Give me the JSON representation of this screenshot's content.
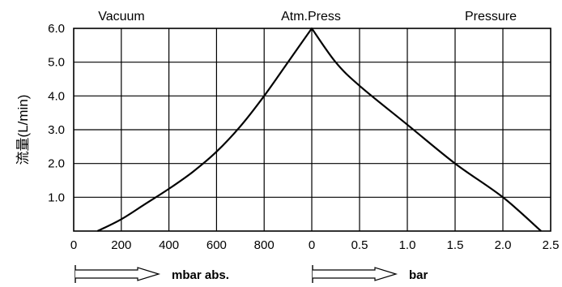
{
  "chart_data": {
    "type": "line",
    "ylabel": "流量(L/min)",
    "regions": {
      "left": "Vacuum",
      "center": "Atm.Press",
      "right": "Pressure"
    },
    "units": {
      "vacuum": "mbar abs.",
      "pressure": "bar"
    },
    "ylim": [
      0,
      6
    ],
    "y_ticks": [
      "1.0",
      "2.0",
      "3.0",
      "4.0",
      "5.0",
      "6.0"
    ],
    "vacuum_axis": {
      "range": [
        0,
        1000
      ],
      "ticks": [
        "0",
        "200",
        "400",
        "600",
        "800"
      ]
    },
    "pressure_axis": {
      "range": [
        0,
        2.5
      ],
      "ticks": [
        "0",
        "0.5",
        "1.0",
        "1.5",
        "2.0",
        "2.5"
      ]
    },
    "grid": true,
    "series": [
      {
        "vacuum_points": [
          [
            100,
            0.0
          ],
          [
            200,
            0.35
          ],
          [
            300,
            0.8
          ],
          [
            400,
            1.25
          ],
          [
            500,
            1.75
          ],
          [
            600,
            2.35
          ],
          [
            700,
            3.1
          ],
          [
            800,
            4.0
          ],
          [
            900,
            5.0
          ],
          [
            1000,
            6.0
          ]
        ],
        "pressure_points": [
          [
            0,
            6.0
          ],
          [
            0.25,
            5.0
          ],
          [
            0.5,
            4.3
          ],
          [
            1.0,
            3.15
          ],
          [
            1.5,
            2.0
          ],
          [
            2.0,
            1.0
          ],
          [
            2.4,
            0.0
          ]
        ]
      }
    ]
  }
}
